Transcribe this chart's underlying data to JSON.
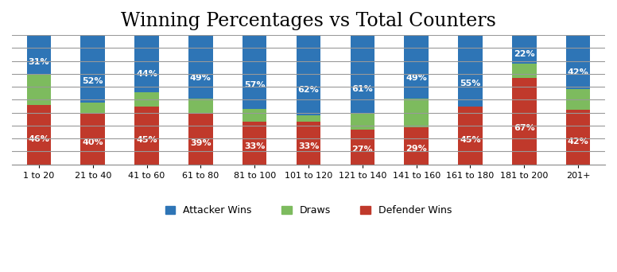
{
  "categories": [
    "1 to 20",
    "21 to 40",
    "41 to 60",
    "61 to 80",
    "81 to 100",
    "101 to 120",
    "121 to 140",
    "141 to 160",
    "161 to 180",
    "181 to 200",
    "201+"
  ],
  "defender_wins": [
    46,
    40,
    45,
    39,
    33,
    33,
    27,
    29,
    45,
    67,
    42
  ],
  "draws": [
    23,
    8,
    11,
    12,
    10,
    5,
    12,
    22,
    0,
    11,
    16
  ],
  "attacker_wins": [
    31,
    52,
    44,
    49,
    57,
    62,
    61,
    49,
    55,
    22,
    42
  ],
  "defender_color": "#c0392b",
  "draw_color": "#7dbb5e",
  "attacker_color": "#2e75b6",
  "title": "Winning Percentages vs Total Counters",
  "title_fontsize": 17,
  "label_fontsize": 8,
  "legend_fontsize": 9,
  "attacker_label": "Attacker Wins",
  "draw_label": "Draws",
  "defender_label": "Defender Wins",
  "ylim": [
    0,
    100
  ],
  "background_color": "#ffffff",
  "grid_color": "#999999",
  "bar_width": 0.45
}
